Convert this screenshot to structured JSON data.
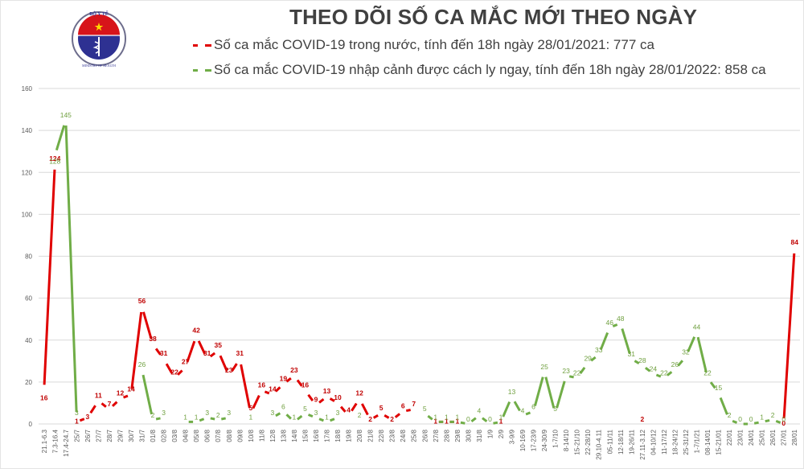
{
  "header": {
    "logo": {
      "top_text": "BỘ Y TẾ",
      "bottom_text": "MINISTRY OF HEALTH"
    },
    "title": "THEO DÕI SỐ CA MẮC MỚI THEO NGÀY",
    "legend": [
      {
        "label": "Số ca mắc COVID-19 trong nước, tính đến 18h ngày 28/01/2021: 777 ca",
        "color": "#e00000"
      },
      {
        "label": "Số ca mắc COVID-19 nhập cảnh được cách ly ngay, tính đến 18h ngày 28/01/2022: 858 ca",
        "color": "#70ad47"
      }
    ]
  },
  "chart_data": {
    "type": "line",
    "title": "THEO DÕI SỐ CA MẮC MỚI THEO NGÀY",
    "xlabel": "",
    "ylabel": "",
    "ylim": [
      0,
      160
    ],
    "yticks": [
      0,
      20,
      40,
      60,
      80,
      100,
      120,
      140,
      160
    ],
    "grid": true,
    "legend_position": "top",
    "categories": [
      "21.1-6.3",
      "7.3-16.4",
      "17.4-24.7",
      "25/7",
      "26/7",
      "27/7",
      "28/7",
      "29/7",
      "30/7",
      "31/7",
      "01/8",
      "02/8",
      "03/8",
      "04/8",
      "05/8",
      "06/8",
      "07/8",
      "08/8",
      "09/8",
      "10/8",
      "11/8",
      "12/8",
      "13/8",
      "14/8",
      "15/8",
      "16/8",
      "17/8",
      "18/8",
      "19/8",
      "20/8",
      "21/8",
      "22/8",
      "23/8",
      "24/8",
      "25/8",
      "26/8",
      "27/8",
      "28/8",
      "29/8",
      "30/8",
      "31/8",
      "1/9",
      "2/9",
      "3-9/9",
      "10-16/9",
      "17-23/9",
      "24-30/9",
      "1-7/10",
      "8-14/10",
      "15-21/10",
      "22-28/10",
      "29.10-4.11",
      "05-11/11",
      "12-18/11",
      "19-26/11",
      "27.11-3.12",
      "04-10/12",
      "11-17/12",
      "18-24/12",
      "25-31/12",
      "1-7/1/21",
      "08-14/01",
      "15-21/01",
      "22/01",
      "23/01",
      "24/01",
      "25/01",
      "26/01",
      "27/01",
      "28/01"
    ],
    "series": [
      {
        "name": "Số ca mắc COVID-19 trong nước",
        "color": "#e00000",
        "values": [
          16,
          124,
          null,
          1,
          3,
          11,
          7,
          12,
          14,
          56,
          38,
          31,
          22,
          27,
          42,
          31,
          35,
          23,
          31,
          5,
          16,
          14,
          19,
          23,
          16,
          9,
          13,
          10,
          4,
          12,
          2,
          5,
          2,
          6,
          7,
          null,
          1,
          1,
          1,
          null,
          null,
          null,
          1,
          null,
          null,
          null,
          null,
          null,
          null,
          null,
          null,
          null,
          null,
          null,
          null,
          2,
          null,
          null,
          null,
          null,
          null,
          null,
          null,
          null,
          null,
          null,
          null,
          null,
          0,
          84
        ]
      },
      {
        "name": "Số ca mắc COVID-19 nhập cảnh được cách ly ngay",
        "color": "#70ad47",
        "values": [
          null,
          128,
          145,
          3,
          null,
          null,
          null,
          null,
          null,
          26,
          2,
          3,
          null,
          1,
          1,
          3,
          2,
          3,
          null,
          1,
          null,
          3,
          6,
          1,
          5,
          3,
          1,
          3,
          null,
          2,
          null,
          null,
          null,
          null,
          null,
          5,
          1,
          1,
          1,
          0,
          4,
          0,
          1,
          13,
          4,
          6,
          25,
          5,
          23,
          22,
          29,
          33,
          46,
          48,
          31,
          28,
          24,
          22,
          26,
          32,
          44,
          22,
          15,
          2,
          0,
          0,
          1,
          2,
          0,
          null
        ]
      }
    ]
  }
}
